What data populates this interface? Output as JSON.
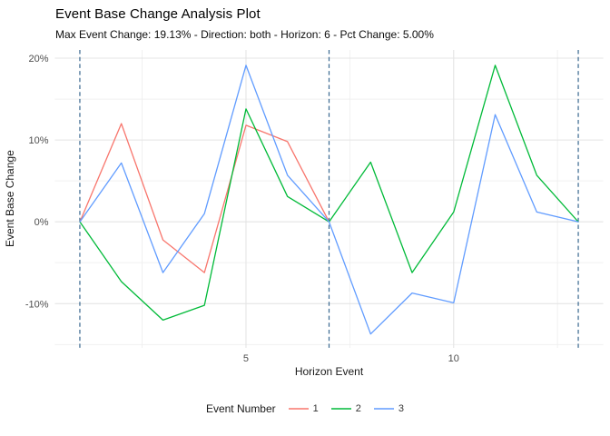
{
  "chart_data": {
    "type": "line",
    "title": "Event Base Change Analysis Plot",
    "subtitle": "Max Event Change: 19.13% - Direction: both - Horizon: 6 - Pct Change: 5.00%",
    "xlabel": "Horizon Event",
    "ylabel": "Event Base Change",
    "xlim": [
      0.4,
      13.6
    ],
    "ylim": [
      -15.4,
      21.0
    ],
    "x_major_ticks": [
      5,
      10
    ],
    "x_minor_gridlines": [
      2.5,
      7.5,
      12.5
    ],
    "y_major_ticks": [
      20,
      10,
      0,
      -10
    ],
    "y_minor_gridlines": [
      15,
      5,
      -5,
      -15
    ],
    "y_tick_suffix": "%",
    "grid": true,
    "legend_title": "Event Number",
    "legend_position": "bottom",
    "vlines": {
      "x_values": [
        1,
        7,
        13
      ],
      "color": "#38678f",
      "style": "dashed"
    },
    "series": [
      {
        "name": "1",
        "color": "#F8766D",
        "x": [
          1,
          2,
          3,
          4,
          5,
          6,
          7
        ],
        "values": [
          0,
          12.0,
          -2.2,
          -6.2,
          11.8,
          9.8,
          0
        ]
      },
      {
        "name": "2",
        "color": "#00BA38",
        "x": [
          1,
          2,
          3,
          4,
          5,
          6,
          7,
          8,
          9,
          10,
          11,
          12,
          13
        ],
        "values": [
          0,
          -7.3,
          -12.0,
          -10.2,
          13.8,
          3.1,
          0,
          7.3,
          -6.2,
          1.2,
          19.13,
          5.7,
          0
        ]
      },
      {
        "name": "3",
        "color": "#619CFF",
        "x": [
          1,
          2,
          3,
          4,
          5,
          6,
          7,
          8,
          9,
          10,
          11,
          12,
          13
        ],
        "values": [
          0,
          7.2,
          -6.2,
          1.0,
          19.13,
          5.7,
          0,
          -13.7,
          -8.7,
          -9.9,
          13.1,
          1.2,
          0
        ]
      }
    ]
  }
}
